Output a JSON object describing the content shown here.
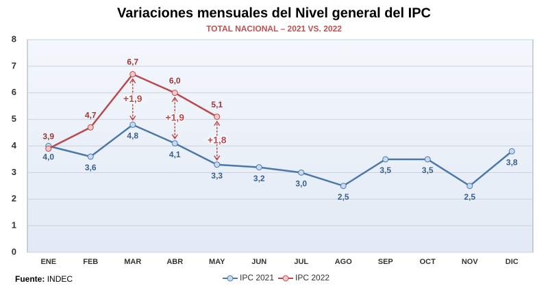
{
  "chart_data": {
    "type": "line",
    "title": "Variaciones mensuales del Nivel general del IPC",
    "subtitle": "TOTAL NACIONAL – 2021 VS. 2022",
    "categories": [
      "ENE",
      "FEB",
      "MAR",
      "ABR",
      "MAY",
      "JUN",
      "JUL",
      "AGO",
      "SEP",
      "OCT",
      "NOV",
      "DIC"
    ],
    "series": [
      {
        "name": "IPC 2021",
        "color": "#4a78a8",
        "values": [
          4.0,
          3.6,
          4.8,
          4.1,
          3.3,
          3.2,
          3.0,
          2.5,
          3.5,
          3.5,
          2.5,
          3.8
        ],
        "value_labels": [
          "4,0",
          "3,6",
          "4,8",
          "4,1",
          "3,3",
          "3,2",
          "3,0",
          "2,5",
          "3,5",
          "3,5",
          "2,5",
          "3,8"
        ]
      },
      {
        "name": "IPC 2022",
        "color": "#b84a4c",
        "values": [
          3.9,
          4.7,
          6.7,
          6.0,
          5.1,
          null,
          null,
          null,
          null,
          null,
          null,
          null
        ],
        "value_labels": [
          "3,9",
          "4,7",
          "6,7",
          "6,0",
          "5,1",
          null,
          null,
          null,
          null,
          null,
          null,
          null
        ]
      }
    ],
    "ylim": [
      0,
      8
    ],
    "yticks": [
      0,
      1,
      2,
      3,
      4,
      5,
      6,
      7,
      8
    ],
    "grid": true,
    "legend": "bottom",
    "annotations": [
      {
        "text": "+1,9",
        "category": "MAR"
      },
      {
        "text": "+1,9",
        "category": "ABR"
      },
      {
        "text": "+1,8",
        "category": "MAY"
      }
    ],
    "source_label": "Fuente:",
    "source": "INDEC"
  }
}
